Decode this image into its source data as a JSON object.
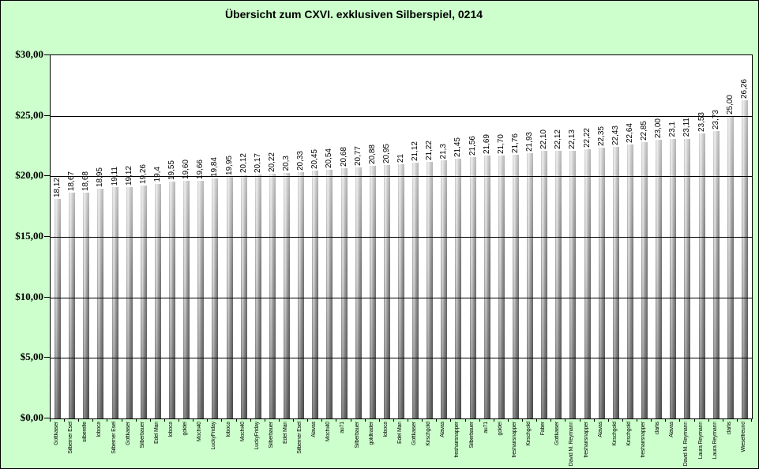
{
  "title": "Übersicht zum CXVI. exklusiven Silberspiel, 0214",
  "colors": {
    "chart_background": "#ccffcc",
    "plot_background": "#ffffff",
    "axis": "#000000",
    "bar_base": "#a8a8a8"
  },
  "chart_data": {
    "type": "bar",
    "title": "Übersicht zum CXVI. exklusiven Silberspiel, 0214",
    "xlabel": "",
    "ylabel": "",
    "ylim": [
      0,
      30
    ],
    "y_tick_step": 5,
    "y_tick_labels": [
      "$30,00",
      "$25,00",
      "$20,00",
      "$15,00",
      "$10,00",
      "$5,00",
      "$0,00"
    ],
    "grid": true,
    "legend": false,
    "bar_value_labels_rotated": true,
    "points": [
      {
        "label": "Gottkaiser",
        "value": 18.12,
        "value_text": "18,12"
      },
      {
        "label": "Silberner Esel",
        "value": 18.67,
        "value_text": "18,67"
      },
      {
        "label": "silberelfe",
        "value": 18.68,
        "value_text": "18,68"
      },
      {
        "label": "loboca",
        "value": 18.95,
        "value_text": "18,95"
      },
      {
        "label": "Silberner Esel",
        "value": 19.11,
        "value_text": "19,11"
      },
      {
        "label": "Gottkaiser",
        "value": 19.12,
        "value_text": "19,12"
      },
      {
        "label": "Silberbauer",
        "value": 19.26,
        "value_text": "19,26"
      },
      {
        "label": "Edel Man",
        "value": 19.4,
        "value_text": "19,4"
      },
      {
        "label": "loboca",
        "value": 19.55,
        "value_text": "19,55"
      },
      {
        "label": "goldel",
        "value": 19.6,
        "value_text": "19,60"
      },
      {
        "label": "Mochi40",
        "value": 19.66,
        "value_text": "19,66"
      },
      {
        "label": "LuckyFriday",
        "value": 19.84,
        "value_text": "19,84"
      },
      {
        "label": "loboca",
        "value": 19.95,
        "value_text": "19,95"
      },
      {
        "label": "Mochi40",
        "value": 20.12,
        "value_text": "20,12"
      },
      {
        "label": "LuckyFriday",
        "value": 20.17,
        "value_text": "20,17"
      },
      {
        "label": "Silberbauer",
        "value": 20.22,
        "value_text": "20,22"
      },
      {
        "label": "Edel Man",
        "value": 20.3,
        "value_text": "20,3"
      },
      {
        "label": "Silberner Esel",
        "value": 20.33,
        "value_text": "20,33"
      },
      {
        "label": "Alavas",
        "value": 20.45,
        "value_text": "20,45"
      },
      {
        "label": "Mochi40",
        "value": 20.54,
        "value_text": "20,54"
      },
      {
        "label": "au71",
        "value": 20.68,
        "value_text": "20,68"
      },
      {
        "label": "Silberbauer",
        "value": 20.77,
        "value_text": "20,77"
      },
      {
        "label": "goldtrader",
        "value": 20.88,
        "value_text": "20,88"
      },
      {
        "label": "loboca",
        "value": 20.95,
        "value_text": "20,95"
      },
      {
        "label": "Edel Man",
        "value": 21,
        "value_text": "21"
      },
      {
        "label": "Gottkaiser",
        "value": 21.12,
        "value_text": "21,12"
      },
      {
        "label": "Kirschgold",
        "value": 21.22,
        "value_text": "21,22"
      },
      {
        "label": "Alavas",
        "value": 21.3,
        "value_text": "21,3"
      },
      {
        "label": "freshairsnapper",
        "value": 21.45,
        "value_text": "21,45"
      },
      {
        "label": "Silberbauer",
        "value": 21.56,
        "value_text": "21,56"
      },
      {
        "label": "au71",
        "value": 21.69,
        "value_text": "21,69"
      },
      {
        "label": "goldel",
        "value": 21.7,
        "value_text": "21,70"
      },
      {
        "label": "freshairsnapper",
        "value": 21.76,
        "value_text": "21,76"
      },
      {
        "label": "Kirschgold",
        "value": 21.93,
        "value_text": "21,93"
      },
      {
        "label": "Faber",
        "value": 22.1,
        "value_text": "22,10"
      },
      {
        "label": "Gottkaiser",
        "value": 22.12,
        "value_text": "22,12"
      },
      {
        "label": "David M. Reymann",
        "value": 22.13,
        "value_text": "22,13"
      },
      {
        "label": "freshairsnapper",
        "value": 22.22,
        "value_text": "22,22"
      },
      {
        "label": "Alavas",
        "value": 22.35,
        "value_text": "22,35"
      },
      {
        "label": "Kirschgold",
        "value": 22.43,
        "value_text": "22,43"
      },
      {
        "label": "Kirschgold",
        "value": 22.64,
        "value_text": "22,64"
      },
      {
        "label": "freshairsnapper",
        "value": 22.85,
        "value_text": "22,85"
      },
      {
        "label": "clarlis",
        "value": 23,
        "value_text": "23,00"
      },
      {
        "label": "Alavas",
        "value": 23.1,
        "value_text": "23,1"
      },
      {
        "label": "David M. Reymann",
        "value": 23.11,
        "value_text": "23,11"
      },
      {
        "label": "Laura Reymann",
        "value": 23.53,
        "value_text": "23,53"
      },
      {
        "label": "Laura Reymann",
        "value": 23.73,
        "value_text": "23,73"
      },
      {
        "label": "clarlis",
        "value": 25,
        "value_text": "25,00"
      },
      {
        "label": "Wieselfreund",
        "value": 26.26,
        "value_text": "26,26"
      }
    ]
  }
}
